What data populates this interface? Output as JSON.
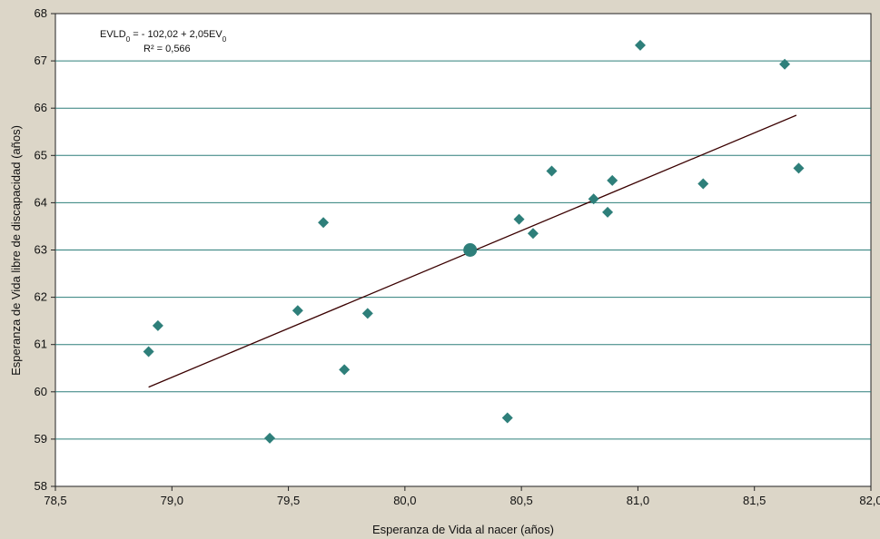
{
  "chart_data": {
    "type": "scatter",
    "xlabel": "Esperanza de Vida al nacer (años)",
    "ylabel": "Esperanza de Vida libre de discapacidad (años)",
    "xlim": [
      78.5,
      82.0
    ],
    "ylim": [
      58,
      68
    ],
    "x_ticks": [
      "78,5",
      "79,0",
      "79,5",
      "80,0",
      "80,5",
      "81,0",
      "81,5",
      "82,0"
    ],
    "y_ticks": [
      "58",
      "59",
      "60",
      "61",
      "62",
      "63",
      "64",
      "65",
      "66",
      "67",
      "68"
    ],
    "grid": "horizontal",
    "marker_color": "#2e7f7a",
    "trend_color": "#3a0000",
    "points": [
      {
        "x": 78.9,
        "y": 60.85
      },
      {
        "x": 78.94,
        "y": 61.4
      },
      {
        "x": 79.42,
        "y": 59.02
      },
      {
        "x": 79.54,
        "y": 61.72
      },
      {
        "x": 79.65,
        "y": 63.58
      },
      {
        "x": 79.74,
        "y": 60.47
      },
      {
        "x": 79.84,
        "y": 61.66
      },
      {
        "x": 80.44,
        "y": 59.45
      },
      {
        "x": 80.49,
        "y": 63.65
      },
      {
        "x": 80.55,
        "y": 63.35
      },
      {
        "x": 80.63,
        "y": 64.67
      },
      {
        "x": 80.81,
        "y": 64.08
      },
      {
        "x": 80.87,
        "y": 63.8
      },
      {
        "x": 80.89,
        "y": 64.47
      },
      {
        "x": 81.01,
        "y": 67.33
      },
      {
        "x": 81.28,
        "y": 64.4
      },
      {
        "x": 81.63,
        "y": 66.93
      },
      {
        "x": 81.69,
        "y": 64.73
      }
    ],
    "highlight_point": {
      "x": 80.28,
      "y": 63.0
    },
    "trendline": {
      "x": [
        78.9,
        81.68
      ],
      "y": [
        60.1,
        65.85
      ]
    },
    "equation": {
      "line1_prefix": "EVLD",
      "line1_sub1": "0",
      "line1_mid": " = - 102,02 + 2,05EV",
      "line1_sub2": "0",
      "line2": "R² = 0,566"
    }
  }
}
